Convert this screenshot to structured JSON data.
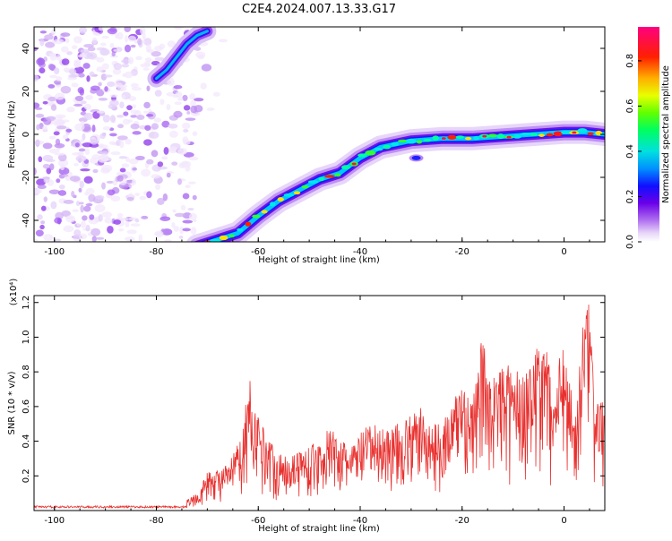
{
  "title": "C2E4.2024.007.13.33.G17",
  "chart_data": [
    {
      "type": "heatmap",
      "xlabel": "Height of straight line (km)",
      "ylabel": "Frequency (Hz)",
      "xlim": [
        -104,
        8
      ],
      "ylim": [
        -50,
        50
      ],
      "xticks": [
        "-100",
        "-80",
        "-60",
        "-40",
        "-20",
        "0"
      ],
      "yticks": [
        "-40",
        "-20",
        "0",
        "20",
        "40"
      ],
      "ridge": [
        {
          "x": -72,
          "y": -52
        },
        {
          "x": -68,
          "y": -49
        },
        {
          "x": -64,
          "y": -46
        },
        {
          "x": -60,
          "y": -38
        },
        {
          "x": -56,
          "y": -31
        },
        {
          "x": -52,
          "y": -26
        },
        {
          "x": -48,
          "y": -21
        },
        {
          "x": -44,
          "y": -18
        },
        {
          "x": -40,
          "y": -11
        },
        {
          "x": -36,
          "y": -6
        },
        {
          "x": -30,
          "y": -3
        },
        {
          "x": -24,
          "y": -2
        },
        {
          "x": -18,
          "y": -2
        },
        {
          "x": -12,
          "y": -1
        },
        {
          "x": -6,
          "y": 0
        },
        {
          "x": 0,
          "y": 1
        },
        {
          "x": 4,
          "y": 1
        },
        {
          "x": 8,
          "y": 0
        }
      ],
      "upper_branch": [
        {
          "x": -80,
          "y": 26
        },
        {
          "x": -78,
          "y": 30
        },
        {
          "x": -76,
          "y": 36
        },
        {
          "x": -74,
          "y": 42
        },
        {
          "x": -72,
          "y": 46
        },
        {
          "x": -70,
          "y": 48
        }
      ],
      "colorbar": {
        "label": "Normalized spectral amplitude",
        "ticks": [
          "0.0",
          "0.2",
          "0.4",
          "0.6",
          "0.8"
        ],
        "range": [
          0,
          0.95
        ]
      }
    },
    {
      "type": "line",
      "xlabel": "Height of straight line (km)",
      "ylabel": "SNR (10 * v/v)",
      "exponent_label": "(x10⁴)",
      "xlim": [
        -104,
        8
      ],
      "ylim": [
        0,
        1.24
      ],
      "xticks": [
        "-100",
        "-80",
        "-60",
        "-40",
        "-20",
        "0"
      ],
      "yticks": [
        "0.2",
        "0.4",
        "0.6",
        "0.8",
        "1.0",
        "1.2"
      ],
      "color": "#e8312f",
      "envelope": [
        {
          "x": -104,
          "y": 0.02
        },
        {
          "x": -80,
          "y": 0.02
        },
        {
          "x": -76,
          "y": 0.04
        },
        {
          "x": -72,
          "y": 0.1
        },
        {
          "x": -70,
          "y": 0.22
        },
        {
          "x": -66,
          "y": 0.26
        },
        {
          "x": -63,
          "y": 0.45
        },
        {
          "x": -62,
          "y": 0.8
        },
        {
          "x": -60,
          "y": 0.55
        },
        {
          "x": -56,
          "y": 0.32
        },
        {
          "x": -52,
          "y": 0.35
        },
        {
          "x": -48,
          "y": 0.4
        },
        {
          "x": -46,
          "y": 0.48
        },
        {
          "x": -42,
          "y": 0.36
        },
        {
          "x": -40,
          "y": 0.45
        },
        {
          "x": -38,
          "y": 0.5
        },
        {
          "x": -34,
          "y": 0.48
        },
        {
          "x": -30,
          "y": 0.55
        },
        {
          "x": -28,
          "y": 0.6
        },
        {
          "x": -26,
          "y": 0.48
        },
        {
          "x": -22,
          "y": 0.6
        },
        {
          "x": -20,
          "y": 0.8
        },
        {
          "x": -18,
          "y": 0.62
        },
        {
          "x": -16,
          "y": 1.02
        },
        {
          "x": -14,
          "y": 0.78
        },
        {
          "x": -12,
          "y": 0.85
        },
        {
          "x": -8,
          "y": 0.8
        },
        {
          "x": -6,
          "y": 0.9
        },
        {
          "x": -4,
          "y": 1.0
        },
        {
          "x": -2,
          "y": 0.75
        },
        {
          "x": 0,
          "y": 1.03
        },
        {
          "x": 2,
          "y": 0.55
        },
        {
          "x": 4,
          "y": 1.15
        },
        {
          "x": 5,
          "y": 1.24
        },
        {
          "x": 6,
          "y": 0.6
        },
        {
          "x": 8,
          "y": 0.65
        }
      ]
    }
  ]
}
